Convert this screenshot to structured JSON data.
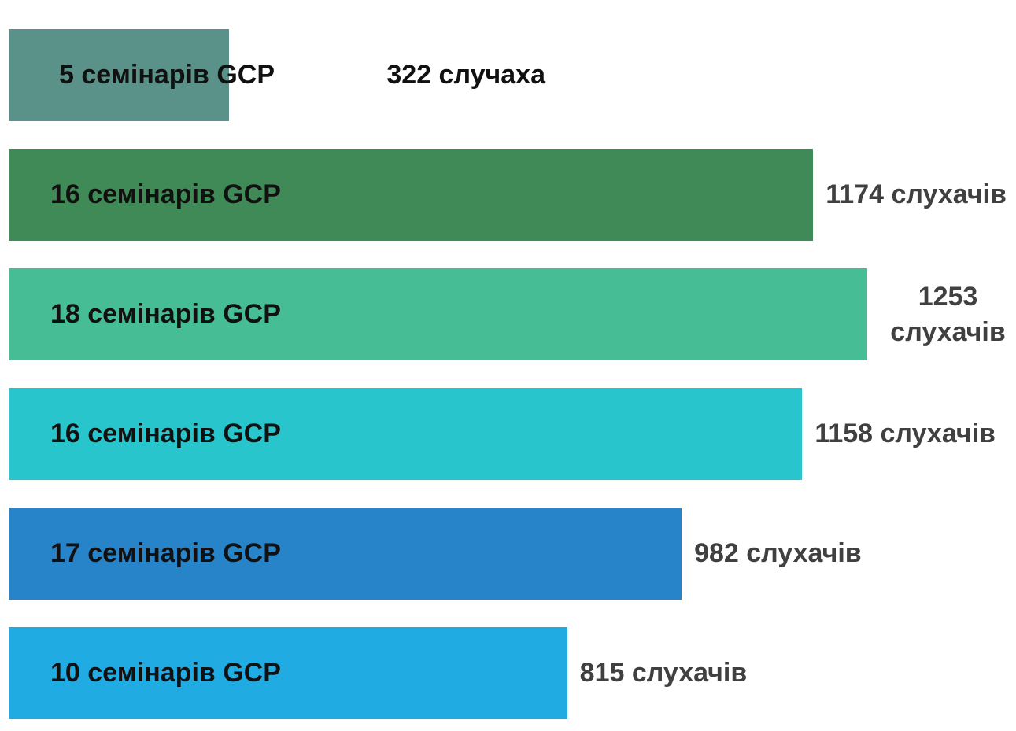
{
  "chart_data": {
    "type": "barh",
    "categories": [
      "5 семінарів GCP",
      "16 семінарів GCP",
      "18 семінарів GCP",
      "16 семінарів GCP",
      "17 семінарів GCP",
      "10 семінарів GCP"
    ],
    "values": [
      322,
      1174,
      1253,
      1158,
      982,
      815
    ],
    "value_labels": [
      "322 случаха",
      "1174 слухачів",
      "1253 слухачів",
      "1158 слухачів",
      "982 слухачів",
      "815 слухачів"
    ],
    "colors": [
      "#5a9188",
      "#3f8a56",
      "#47bd96",
      "#28c5cd",
      "#2884c8",
      "#20abe3"
    ],
    "xlim": [
      0,
      1470
    ]
  }
}
